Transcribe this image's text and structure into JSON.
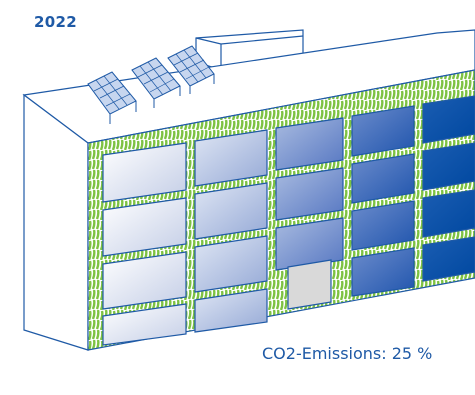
{
  "title": "2022",
  "caption": "CO2-Emissions: 25 %",
  "colors": {
    "outline": "#1f5aa6",
    "green": "#7dc242",
    "window_light": "#dde4f2",
    "window_dark": "#0a55a6",
    "empty_window": "#d9d9d9"
  },
  "icons": [
    "solar-panel-icon",
    "building-icon"
  ]
}
